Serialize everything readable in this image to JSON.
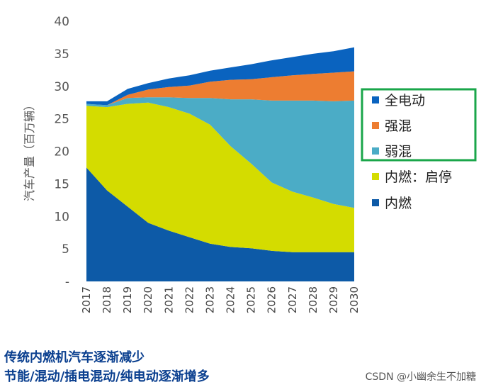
{
  "chart_data": {
    "type": "area",
    "stacked": true,
    "ylabel": "汽车产量（百万辆）",
    "xlabel": "",
    "ylim": [
      0,
      40
    ],
    "y_ticks": [
      "-",
      "5",
      "10",
      "15",
      "20",
      "25",
      "30",
      "35",
      "40"
    ],
    "categories": [
      "2017",
      "2018",
      "2019",
      "2020",
      "2021",
      "2022",
      "2023",
      "2024",
      "2025",
      "2026",
      "2027",
      "2028",
      "2029",
      "2030"
    ],
    "series": [
      {
        "name": "内燃",
        "color": "#0d5aa7",
        "values": [
          17.5,
          14,
          11.5,
          9,
          7.8,
          6.8,
          5.8,
          5.3,
          5.1,
          4.7,
          4.5,
          4.5,
          4.5,
          4.5
        ]
      },
      {
        "name": "内燃：启停",
        "color": "#d4dc00",
        "values": [
          9.5,
          12.8,
          15.8,
          18.5,
          19,
          19,
          18.3,
          15.5,
          13,
          10.5,
          9.3,
          8.4,
          7.4,
          6.8
        ]
      },
      {
        "name": "弱混",
        "color": "#4bacc6",
        "values": [
          0.3,
          0.3,
          0.9,
          0.8,
          1.5,
          2.4,
          4.1,
          7.2,
          9.9,
          12.6,
          14,
          14.9,
          15.8,
          16.5
        ]
      },
      {
        "name": "强混",
        "color": "#ed7d31",
        "values": [
          0,
          0,
          0.5,
          1.2,
          1.6,
          1.9,
          2.5,
          3,
          3.1,
          3.6,
          3.9,
          4.1,
          4.4,
          4.5
        ]
      },
      {
        "name": "全电动",
        "color": "#0a63bf",
        "values": [
          0.4,
          0.6,
          0.9,
          1.0,
          1.3,
          1.6,
          1.7,
          1.9,
          2.3,
          2.6,
          2.8,
          3.1,
          3.3,
          3.7
        ]
      }
    ],
    "legend": [
      {
        "label": "全电动",
        "color": "#0a63bf"
      },
      {
        "label": "强混",
        "color": "#ed7d31"
      },
      {
        "label": "弱混",
        "color": "#4bacc6"
      },
      {
        "label": "内燃：启停",
        "color": "#d4dc00"
      },
      {
        "label": "内燃",
        "color": "#0d5aa7"
      }
    ],
    "highlight_box_color": "#1aa64a"
  },
  "captions": [
    "传统内燃机汽车逐渐减少",
    "节能/混动/插电混动/纯电动逐渐增多"
  ],
  "watermark": "CSDN @小幽余生不加糖"
}
